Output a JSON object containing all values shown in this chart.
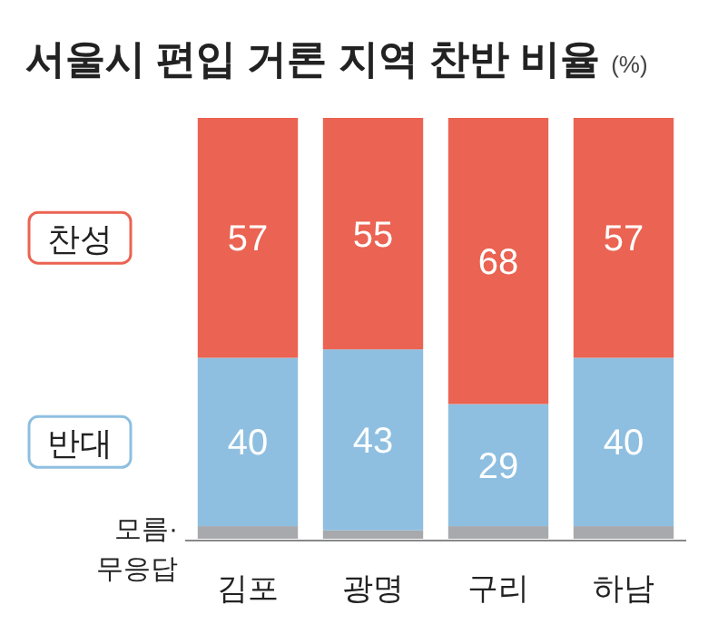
{
  "chart_data": {
    "type": "bar",
    "title": "서울시 편입 거론 지역 찬반 비율",
    "subtitle": "(%)",
    "stacked": true,
    "legend": "left",
    "ylim": [
      0,
      100
    ],
    "tick_labels": "x",
    "categories": [
      "김포",
      "광명",
      "구리",
      "하남"
    ],
    "series": [
      {
        "name": "모름·무응답",
        "color": "#a7a9ac",
        "values": [
          3,
          2,
          3,
          3
        ]
      },
      {
        "name": "반대",
        "color": "#8ebfe0",
        "values": [
          40,
          43,
          29,
          40
        ],
        "value_labels": [
          "40",
          "43",
          "29",
          "40"
        ]
      },
      {
        "name": "찬성",
        "color": "#eb6352",
        "values": [
          57,
          55,
          68,
          57
        ],
        "value_labels": [
          "57",
          "55",
          "68",
          "57"
        ]
      }
    ]
  }
}
